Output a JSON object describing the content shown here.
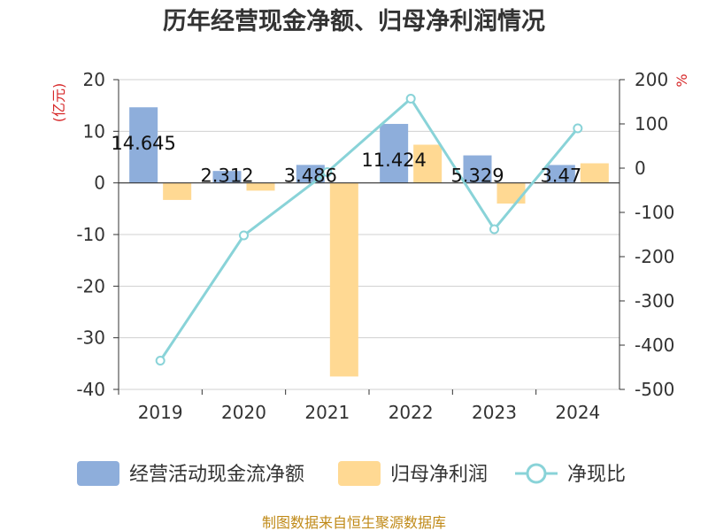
{
  "chart_data": {
    "type": "bar",
    "title": "历年经营现金净额、归母净利润情况",
    "categories": [
      "2019",
      "2020",
      "2021",
      "2022",
      "2023",
      "2024"
    ],
    "series": [
      {
        "name": "经营活动现金流净额",
        "type": "bar",
        "axis": "left",
        "color": "#8eaedb",
        "values": [
          14.645,
          2.312,
          3.486,
          11.424,
          5.329,
          3.47
        ],
        "labels": [
          "14.645",
          "2.312",
          "3.486",
          "11.424",
          "5.329",
          "3.47"
        ]
      },
      {
        "name": "归母净利润",
        "type": "bar",
        "axis": "left",
        "color": "#ffd993",
        "values": [
          -3.3,
          -1.5,
          -37.5,
          7.4,
          -4.0,
          3.8
        ]
      },
      {
        "name": "净现比",
        "type": "line",
        "axis": "right",
        "color": "#89d3d8",
        "values": [
          -435,
          -152,
          -9,
          157,
          -138,
          90
        ]
      }
    ],
    "left_axis": {
      "label": "(亿元)",
      "min": -40,
      "max": 20,
      "ticks": [
        20,
        10,
        0,
        -10,
        -20,
        -30,
        -40
      ],
      "tick_labels": [
        "20",
        "10",
        "0",
        "-10",
        "-20",
        "-30",
        "-40"
      ]
    },
    "right_axis": {
      "label": "%",
      "min": -500,
      "max": 200,
      "ticks": [
        200,
        100,
        0,
        -100,
        -200,
        -300,
        -400,
        -500
      ],
      "tick_labels": [
        "200",
        "100",
        "0",
        "-100",
        "-200",
        "-300",
        "-400",
        "-500"
      ]
    },
    "grid": true,
    "legend": "bottom",
    "source": "制图数据来自恒生聚源数据库"
  }
}
